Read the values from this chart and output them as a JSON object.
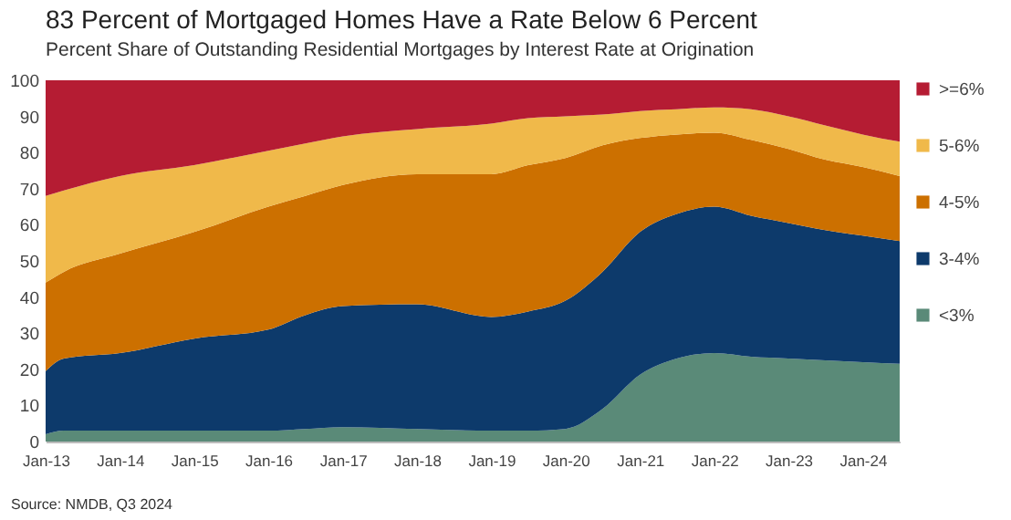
{
  "chart_data": {
    "type": "area",
    "stacked": true,
    "title": "83 Percent of Mortgaged Homes Have a Rate Below 6 Percent",
    "subtitle": "Percent Share of Outstanding Residential Mortgages by Interest Rate at Origination",
    "annotations": [
      "Source: NMDB, Q3 2024"
    ],
    "x": [
      "2013-01",
      "2013-04",
      "2014-01",
      "2015-01",
      "2016-01",
      "2016-07",
      "2017-01",
      "2018-01",
      "2019-01",
      "2019-07",
      "2020-01",
      "2020-07",
      "2021-01",
      "2021-07",
      "2022-01",
      "2022-07",
      "2023-01",
      "2023-07",
      "2024-01",
      "2024-07"
    ],
    "series": [
      {
        "name": "<3%",
        "color": "#5a8a78",
        "values": [
          2,
          3,
          3,
          3,
          3,
          3.5,
          4,
          3.5,
          3,
          3,
          3.5,
          9,
          18.5,
          23,
          24.5,
          23.5,
          23,
          22.5,
          22,
          21.5
        ]
      },
      {
        "name": "3-4%",
        "color": "#0d3a6b",
        "values": [
          17.5,
          20,
          21.5,
          25.5,
          28,
          31.5,
          33.5,
          34.5,
          31.5,
          33,
          35.5,
          38,
          39.5,
          40,
          40.5,
          39,
          37.5,
          36,
          35,
          34
        ]
      },
      {
        "name": "4-5%",
        "color": "#cc7000",
        "values": [
          24.5,
          24,
          27.5,
          29.5,
          34,
          33,
          33.5,
          36,
          39.5,
          40.5,
          39.5,
          35,
          26,
          22,
          20.5,
          21,
          20.5,
          19.5,
          19,
          18
        ]
      },
      {
        "name": "5-6%",
        "color": "#f0b94a",
        "values": [
          24,
          22.5,
          21.5,
          18.5,
          15.5,
          14.5,
          13.5,
          12.5,
          14,
          13,
          11.5,
          8.5,
          7.5,
          7,
          7,
          8.5,
          9,
          9.5,
          9,
          9.5
        ]
      },
      {
        "name": ">=6%",
        "color": "#b51c33",
        "values": [
          32,
          30.5,
          26.5,
          23.5,
          19.5,
          17.5,
          15.5,
          13.5,
          12,
          10.5,
          10,
          9.5,
          8.5,
          8,
          7.5,
          8,
          10,
          12.5,
          15,
          17
        ]
      }
    ],
    "xlim": [
      "2013-01",
      "2024-07"
    ],
    "xticks": [
      {
        "value": "2013-01",
        "label": "Jan-13"
      },
      {
        "value": "2014-01",
        "label": "Jan-14"
      },
      {
        "value": "2015-01",
        "label": "Jan-15"
      },
      {
        "value": "2016-01",
        "label": "Jan-16"
      },
      {
        "value": "2017-01",
        "label": "Jan-17"
      },
      {
        "value": "2018-01",
        "label": "Jan-18"
      },
      {
        "value": "2019-01",
        "label": "Jan-19"
      },
      {
        "value": "2020-01",
        "label": "Jan-20"
      },
      {
        "value": "2021-01",
        "label": "Jan-21"
      },
      {
        "value": "2022-01",
        "label": "Jan-22"
      },
      {
        "value": "2023-01",
        "label": "Jan-23"
      },
      {
        "value": "2024-01",
        "label": "Jan-24"
      }
    ],
    "ylim": [
      0,
      100
    ],
    "yticks": [
      0,
      10,
      20,
      30,
      40,
      50,
      60,
      70,
      80,
      90,
      100
    ],
    "legend": "right"
  }
}
